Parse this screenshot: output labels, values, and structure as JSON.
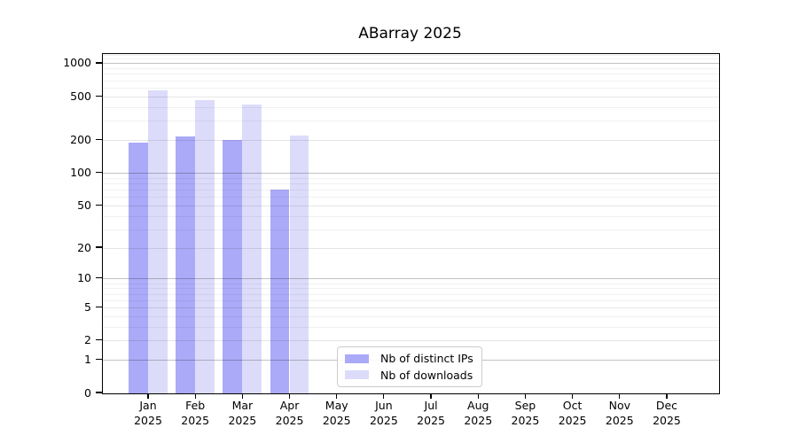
{
  "chart_data": {
    "type": "bar",
    "title": "ABarray 2025",
    "categories": [
      "Jan",
      "Feb",
      "Mar",
      "Apr",
      "May",
      "Jun",
      "Jul",
      "Aug",
      "Sep",
      "Oct",
      "Nov",
      "Dec"
    ],
    "category_year": "2025",
    "series": [
      {
        "name": "Nb of distinct IPs",
        "color": "#aaaaf8",
        "values": [
          191,
          216,
          200,
          70,
          null,
          null,
          null,
          null,
          null,
          null,
          null,
          null
        ]
      },
      {
        "name": "Nb of downloads",
        "color": "#dcdcfa",
        "values": [
          573,
          467,
          428,
          223,
          null,
          null,
          null,
          null,
          null,
          null,
          null,
          null
        ]
      }
    ],
    "y_scale": "log1p",
    "ylim": [
      0,
      1230
    ],
    "y_ticks": [
      0,
      1,
      2,
      5,
      10,
      20,
      50,
      100,
      200,
      500,
      1000
    ],
    "y_decade_gridlines": [
      1,
      10,
      100,
      1000
    ],
    "y_minor_gridlines": [
      3,
      4,
      6,
      7,
      8,
      9,
      30,
      40,
      60,
      70,
      80,
      90,
      300,
      400,
      600,
      700,
      800,
      900,
      1100,
      1200
    ],
    "grid": "horizontal",
    "legend_position": "lower-center",
    "colors": {
      "background": "#ffffff",
      "axis": "#000000",
      "grid_decade": "rgba(0,0,0,0.24)",
      "grid_tick": "rgba(0,0,0,0.10)",
      "grid_minor": "rgba(0,0,0,0.055)",
      "legend_border": "#cccccc"
    }
  }
}
